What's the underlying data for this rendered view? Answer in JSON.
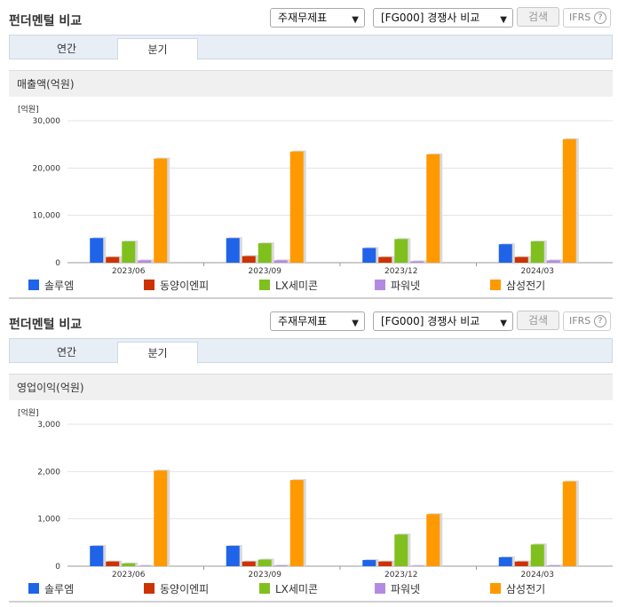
{
  "colors": {
    "solueum": "#1f63e8",
    "dongyang": "#cc3300",
    "lx": "#80c01e",
    "power": "#b48ae0",
    "samsung": "#ff9900",
    "shadow": "#d8d8d8"
  },
  "sections": [
    {
      "title": "펀더멘털 비교",
      "select1": "주재무제표",
      "select2": "[FG000] 경쟁사 비교",
      "search_label": "검색",
      "ifrs_label": "IFRS",
      "help_label": "?",
      "tabs": [
        "연간",
        "분기"
      ],
      "chart_title": "매출액(억원)"
    },
    {
      "title": "펀더멘털 비교",
      "select1": "주재무제표",
      "select2": "[FG000] 경쟁사 비교",
      "search_label": "검색",
      "ifrs_label": "IFRS",
      "help_label": "?",
      "tabs": [
        "연간",
        "분기"
      ],
      "chart_title": "영업이익(억원)"
    }
  ],
  "chart_data": [
    {
      "type": "bar",
      "title": "매출액(억원)",
      "unit": "[억원]",
      "categories": [
        "2023/06",
        "2023/09",
        "2023/12",
        "2024/03"
      ],
      "ylim": [
        0,
        30000
      ],
      "yticks": [
        0,
        10000,
        20000,
        30000
      ],
      "ytick_labels": [
        "0",
        "10,000",
        "20,000",
        "30,000"
      ],
      "grid": true,
      "legend": "bottom",
      "series": [
        {
          "name": "솔루엠",
          "color": "#1f63e8",
          "values": [
            5200,
            5200,
            3100,
            3900
          ]
        },
        {
          "name": "동양이엔피",
          "color": "#cc3300",
          "values": [
            1200,
            1400,
            1200,
            1200
          ]
        },
        {
          "name": "LX세미콘",
          "color": "#80c01e",
          "values": [
            4500,
            4100,
            5000,
            4500
          ]
        },
        {
          "name": "파워넷",
          "color": "#b48ae0",
          "values": [
            500,
            500,
            300,
            500
          ]
        },
        {
          "name": "삼성전기",
          "color": "#ff9900",
          "values": [
            22000,
            23500,
            22900,
            26100
          ]
        }
      ]
    },
    {
      "type": "bar",
      "title": "영업이익(억원)",
      "unit": "[억원]",
      "categories": [
        "2023/06",
        "2023/09",
        "2023/12",
        "2024/03"
      ],
      "ylim": [
        0,
        3000
      ],
      "yticks": [
        0,
        1000,
        2000,
        3000
      ],
      "ytick_labels": [
        "0",
        "1,000",
        "2,000",
        "3,000"
      ],
      "grid": true,
      "legend": "bottom",
      "series": [
        {
          "name": "솔루엠",
          "color": "#1f63e8",
          "values": [
            430,
            430,
            130,
            190
          ]
        },
        {
          "name": "동양이엔피",
          "color": "#cc3300",
          "values": [
            100,
            100,
            100,
            100
          ]
        },
        {
          "name": "LX세미콘",
          "color": "#80c01e",
          "values": [
            60,
            140,
            670,
            460
          ]
        },
        {
          "name": "파워넷",
          "color": "#b48ae0",
          "values": [
            10,
            15,
            10,
            15
          ]
        },
        {
          "name": "삼성전기",
          "color": "#ff9900",
          "values": [
            2020,
            1820,
            1100,
            1790
          ]
        }
      ]
    }
  ]
}
